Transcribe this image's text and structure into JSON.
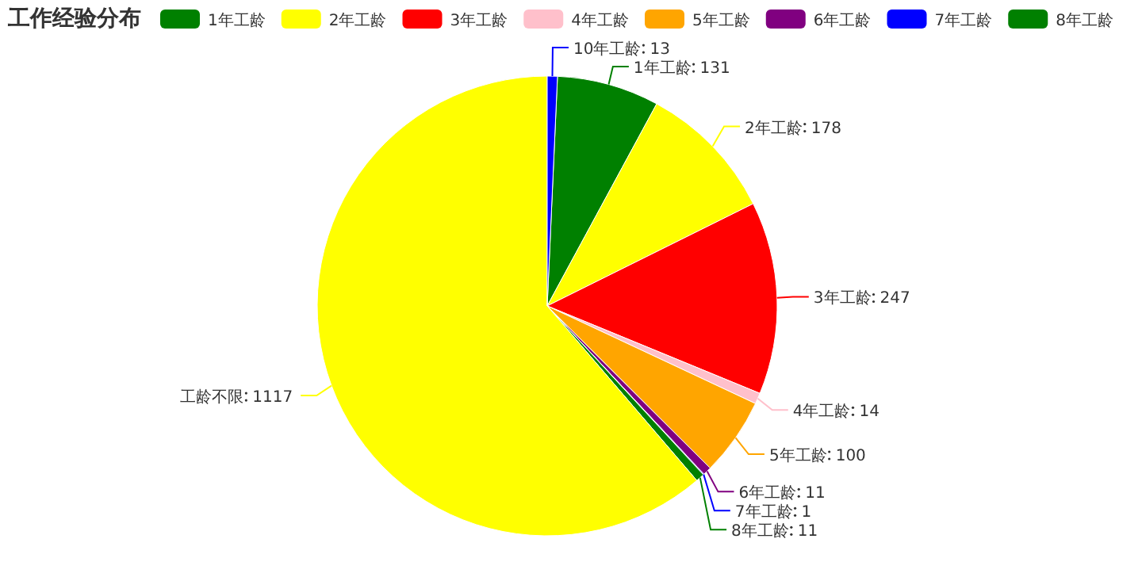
{
  "chart_data": {
    "type": "pie",
    "title": "工作经验分布",
    "categories": [
      "1年工龄",
      "2年工龄",
      "3年工龄",
      "4年工龄",
      "5年工龄",
      "6年工龄",
      "7年工龄",
      "8年工龄",
      "工龄不限",
      "10年工龄"
    ],
    "values": [
      131,
      178,
      247,
      14,
      100,
      11,
      1,
      11,
      1117,
      13
    ],
    "colors": [
      "#008000",
      "#ffff00",
      "#ff0000",
      "#ffc0cb",
      "#ffa500",
      "#800080",
      "#0000ff",
      "#008000",
      "#ffff00",
      "#0000ff"
    ],
    "legend": "top",
    "data_labels": true
  }
}
